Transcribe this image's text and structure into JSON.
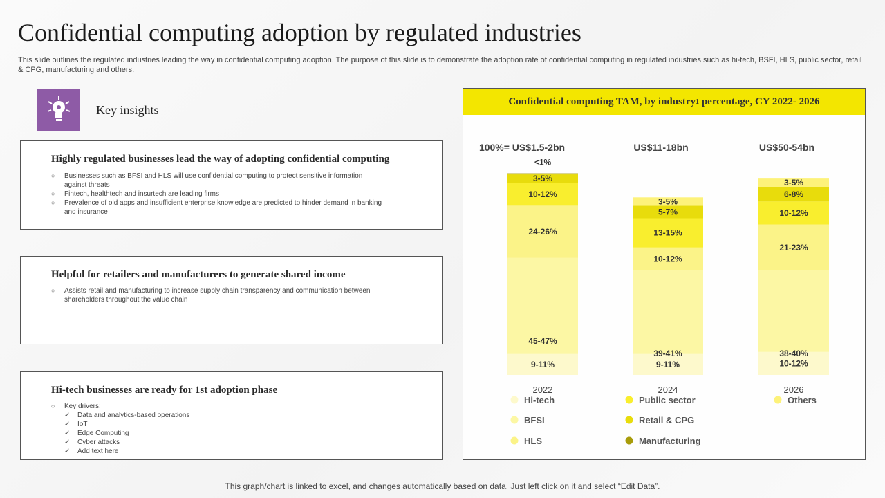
{
  "title": "Confidential computing adoption by regulated industries",
  "subtitle": "This slide outlines the regulated industries leading the way in confidential computing adoption. The purpose of this slide is to demonstrate the adoption rate of confidential computing in regulated industries such as hi-tech, BSFI, HLS, public sector, retail & CPG, manufacturing and others.",
  "insights": {
    "heading": "Key insights",
    "icon": "lightbulb-gear-icon",
    "icon_bg": "#8e5ba6"
  },
  "cards": [
    {
      "title": "Highly regulated businesses lead the way of adopting confidential computing",
      "bullets": [
        "Businesses such as BFSI and HLS will use confidential computing to protect sensitive information against threats",
        "Fintech, healthtech and insurtech are leading firms",
        "Prevalence of old apps and insufficient enterprise knowledge are predicted to hinder demand in banking and insurance"
      ]
    },
    {
      "title": "Helpful for retailers and manufacturers to generate shared income",
      "bullets": [
        "Assists retail and manufacturing to increase supply chain transparency and communication between shareholders throughout the value chain"
      ]
    },
    {
      "title": "Hi-tech businesses are ready for 1st adoption phase",
      "bullets": [
        "Key drivers:"
      ],
      "drivers": [
        "Data and analytics-based operations",
        "IoT",
        "Edge Computing",
        "Cyber attacks",
        "Add text here"
      ]
    }
  ],
  "chart_header": {
    "main": "Confidential computing TAM, by industry",
    "sup": "1",
    "rest": " percentage, CY 2022- 2026"
  },
  "chart_data": {
    "type": "bar",
    "stacked": true,
    "title": "Confidential computing TAM, by industry1 percentage, CY 2022- 2026",
    "categories": [
      "2022",
      "2024",
      "2026"
    ],
    "totals": [
      "100%= US$1.5-2bn",
      "US$11-18bn",
      "US$50-54bn"
    ],
    "ylim": [
      0,
      100
    ],
    "series": [
      {
        "name": "Hi-tech",
        "color": "#fdf9cc",
        "values": [
          10,
          10,
          11
        ],
        "labels": [
          "9-11%",
          "9-11%",
          "10-12%"
        ]
      },
      {
        "name": "BFSI",
        "color": "#fcf7a4",
        "values": [
          46,
          40,
          39
        ],
        "labels": [
          "45-47%",
          "39-41%",
          "38-40%"
        ]
      },
      {
        "name": "HLS",
        "color": "#fbf388",
        "values": [
          25,
          11,
          22
        ],
        "labels": [
          "24-26%",
          "10-12%",
          "21-23%"
        ]
      },
      {
        "name": "Public sector",
        "color": "#f9ee2e",
        "values": [
          11,
          14,
          11
        ],
        "labels": [
          "10-12%",
          "13-15%",
          "10-12%"
        ]
      },
      {
        "name": "Retail & CPG",
        "color": "#e8dc0c",
        "values": [
          4,
          6,
          7
        ],
        "labels": [
          "3-5%",
          "5-7%",
          "6-8%"
        ]
      },
      {
        "name": "Manufacturing",
        "color": "#a89c0a",
        "values": [
          0.5,
          0,
          0
        ],
        "labels": [
          "<1%",
          "",
          ""
        ]
      },
      {
        "name": "Others",
        "color": "#fdf27a",
        "values": [
          0,
          4,
          4
        ],
        "labels": [
          "",
          "3-5%",
          "3-5%"
        ]
      }
    ]
  },
  "footer": "This graph/chart is linked to excel, and changes automatically based on data. Just left click on it and select “Edit Data”."
}
